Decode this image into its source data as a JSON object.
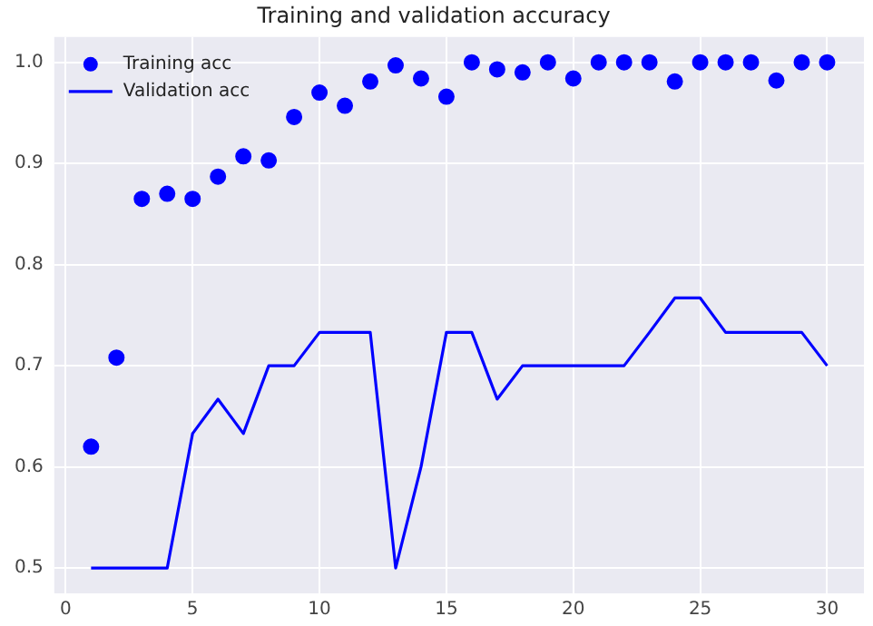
{
  "chart_data": {
    "type": "line",
    "title": "Training and validation accuracy",
    "x": [
      1,
      2,
      3,
      4,
      5,
      6,
      7,
      8,
      9,
      10,
      11,
      12,
      13,
      14,
      15,
      16,
      17,
      18,
      19,
      20,
      21,
      22,
      23,
      24,
      25,
      26,
      27,
      28,
      29,
      30
    ],
    "series": [
      {
        "name": "Training acc",
        "type": "scatter",
        "color": "#0000ff",
        "marker": "circle",
        "values": [
          0.62,
          0.708,
          0.865,
          0.87,
          0.865,
          0.887,
          0.907,
          0.903,
          0.946,
          0.97,
          0.957,
          0.981,
          0.997,
          0.984,
          0.966,
          1.0,
          0.993,
          0.99,
          1.0,
          0.984,
          1.0,
          1.0,
          1.0,
          0.981,
          1.0,
          1.0,
          1.0,
          0.982,
          1.0,
          1.0
        ]
      },
      {
        "name": "Validation acc",
        "color": "#0000ff",
        "line_style": "solid",
        "values": [
          0.5,
          0.5,
          0.5,
          0.5,
          0.633,
          0.667,
          0.633,
          0.7,
          0.7,
          0.733,
          0.733,
          0.733,
          0.5,
          0.6,
          0.733,
          0.733,
          0.667,
          0.7,
          0.7,
          0.7,
          0.7,
          0.7,
          0.733,
          0.767,
          0.767,
          0.733,
          0.733,
          0.733,
          0.733,
          0.7
        ]
      }
    ],
    "xlim": [
      -0.45,
      31.45
    ],
    "xticks": [
      0,
      5,
      10,
      15,
      20,
      25,
      30
    ],
    "ylim": [
      0.475,
      1.025
    ],
    "yticks": [
      0.5,
      0.6,
      0.7,
      0.8,
      0.9,
      {
        "value": 1.0,
        "label": "1.0"
      }
    ],
    "grid": true,
    "legend": "top left"
  }
}
